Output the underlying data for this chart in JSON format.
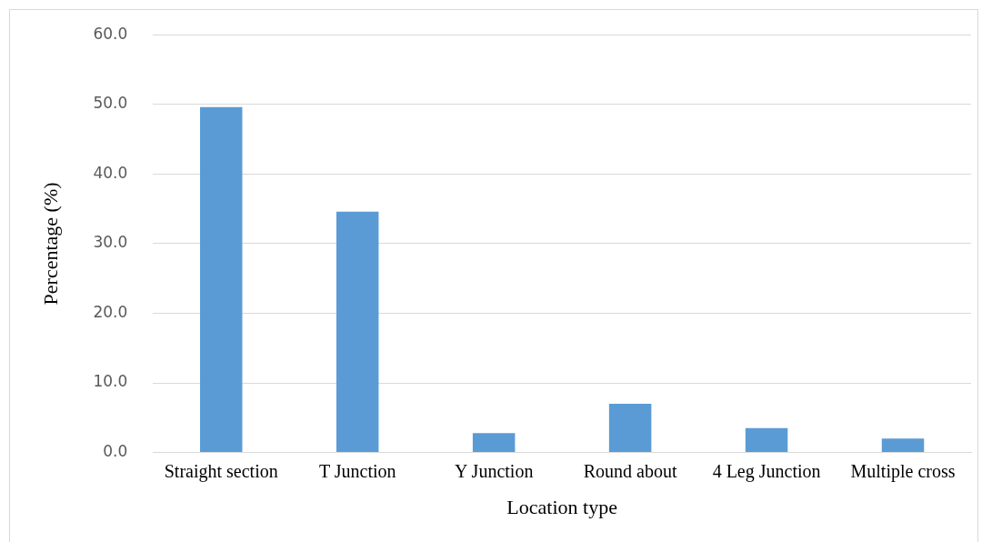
{
  "chart_data": {
    "type": "bar",
    "xlabel": "Location type",
    "ylabel": "Percentage (%)",
    "categories": [
      "Straight section",
      "T Junction",
      "Y Junction",
      "Round about",
      "4 Leg Junction",
      "Multiple cross"
    ],
    "values": [
      49.6,
      34.6,
      2.8,
      7.0,
      3.5,
      2.0
    ],
    "color": "#5b9bd5",
    "ylim": [
      0,
      60
    ],
    "yticks": [
      {
        "value": 0,
        "label": "0.0"
      },
      {
        "value": 10,
        "label": "10.0"
      },
      {
        "value": 20,
        "label": "20.0"
      },
      {
        "value": 30,
        "label": "30.0"
      },
      {
        "value": 40,
        "label": "40.0"
      },
      {
        "value": 50,
        "label": "50.0"
      },
      {
        "value": 60,
        "label": "60.0"
      }
    ],
    "grid": "y",
    "legend": false
  }
}
